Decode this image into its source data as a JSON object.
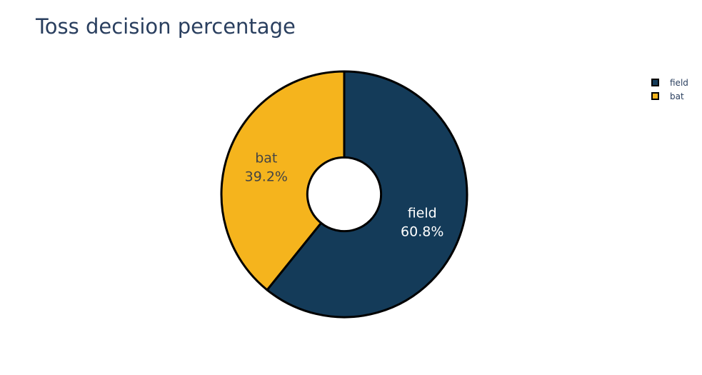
{
  "chart_data": {
    "type": "pie",
    "title": "Toss decision percentage",
    "hole": 0.3,
    "labels": [
      "field",
      "bat"
    ],
    "values": [
      60.8,
      39.2
    ],
    "display_text": [
      "field<br>60.8%",
      "bat<br>39.2%"
    ],
    "colors": [
      "#143b59",
      "#f5b41d"
    ],
    "label_colors": [
      "#ffffff",
      "#444444"
    ],
    "slice_border_color": "#000000",
    "legend": {
      "position": "top-right",
      "entries": [
        "field",
        "bat"
      ]
    }
  }
}
